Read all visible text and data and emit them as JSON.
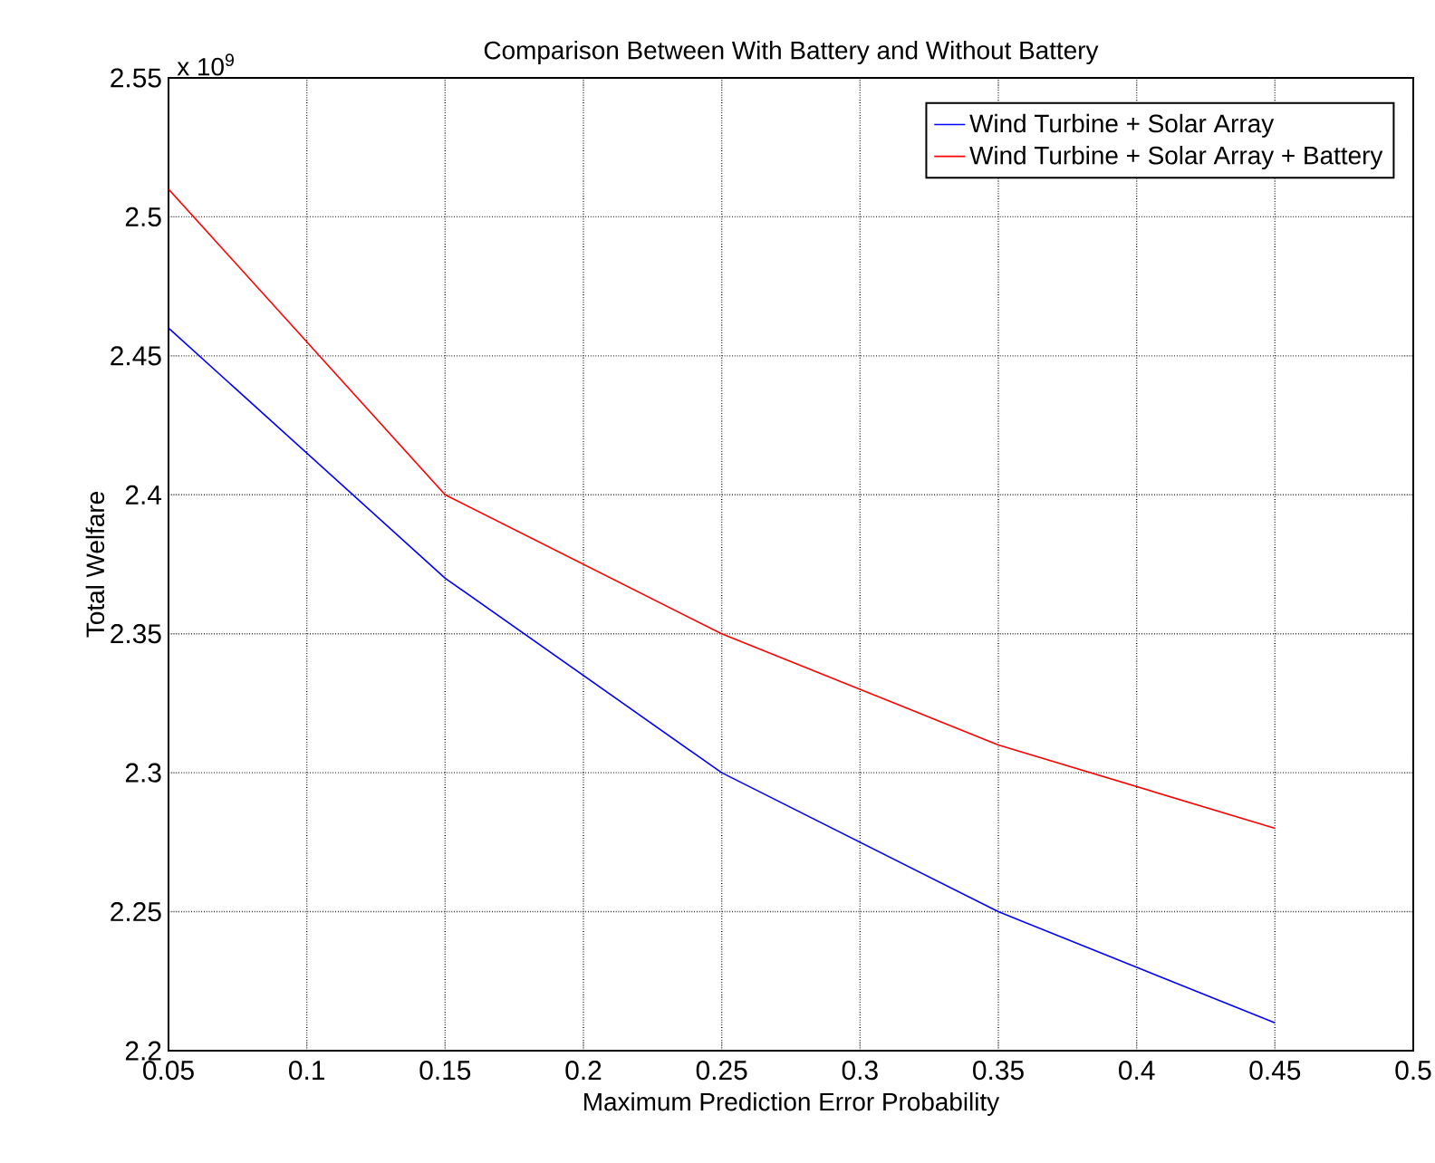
{
  "chart_data": {
    "type": "line",
    "title": "Comparison Between With Battery and Without Battery",
    "xlabel": "Maximum Prediction Error Probability",
    "ylabel": "Total Welfare",
    "annotations": [
      "x 10$^{9}$"
    ],
    "x": [
      0.05,
      0.15,
      0.25,
      0.35,
      0.45
    ],
    "series": [
      {
        "name": "Wind Turbine + Solar Array",
        "color": "#0000ff",
        "values": [
          2.46,
          2.37,
          2.3,
          2.25,
          2.21
        ]
      },
      {
        "name": "Wind Turbine + Solar Array + Battery",
        "color": "#ff0000",
        "values": [
          2.51,
          2.4,
          2.35,
          2.31,
          2.28
        ]
      }
    ],
    "xlim": [
      0.05,
      0.5
    ],
    "xticks": [
      0.05,
      0.1,
      0.15,
      0.2,
      0.25,
      0.3,
      0.35,
      0.4,
      0.45,
      0.5
    ],
    "ylim": [
      2.2,
      2.55
    ],
    "yticks": [
      2.2,
      2.25,
      2.3,
      2.35,
      2.4,
      2.45,
      2.5,
      2.55
    ],
    "grid": true,
    "legend": "top right",
    "line_style": "solid",
    "marker": "none"
  }
}
